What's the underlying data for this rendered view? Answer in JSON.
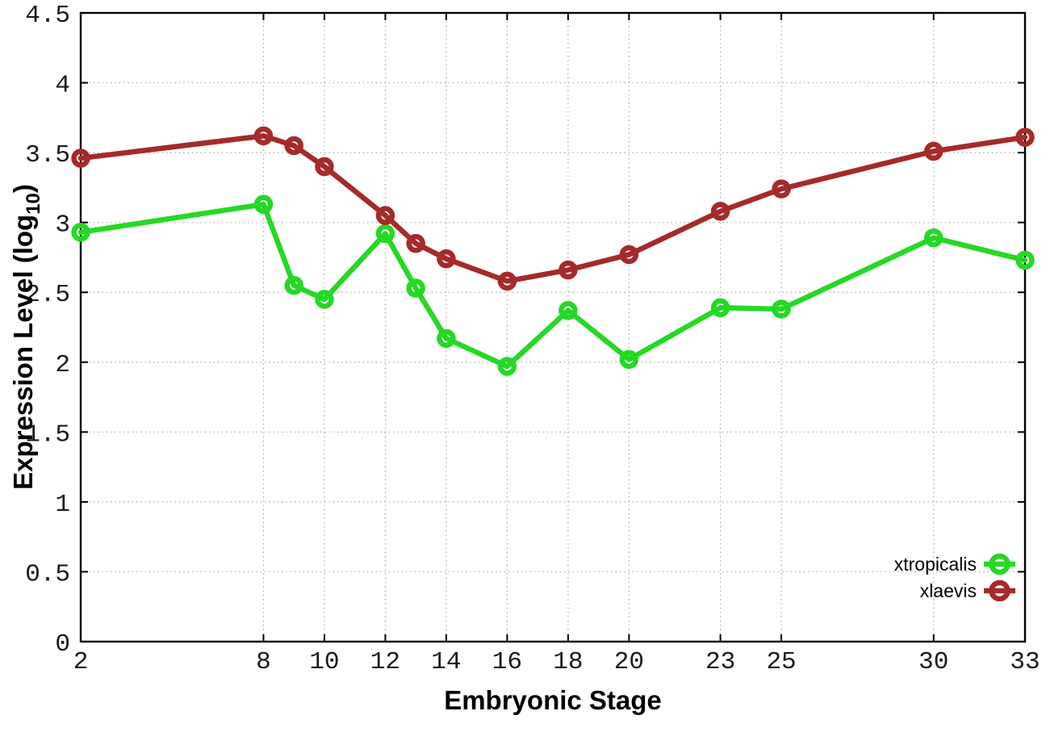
{
  "chart_data": {
    "type": "line",
    "title": "",
    "xlabel": "Embryonic Stage",
    "ylabel": {
      "text": "Expression Level (log",
      "subscript": "10",
      "suffix": ")"
    },
    "xlim": [
      2,
      33
    ],
    "ylim": [
      0,
      4.5
    ],
    "grid": true,
    "legend_position": "bottom-right",
    "xtick_values": [
      2,
      8,
      10,
      12,
      14,
      16,
      18,
      20,
      23,
      25,
      30,
      33
    ],
    "xtick_labels": [
      "2",
      "8",
      "10",
      "12",
      "14",
      "16",
      "18",
      "20",
      "23",
      "25",
      "30",
      "33"
    ],
    "ytick_values": [
      0,
      0.5,
      1,
      1.5,
      2,
      2.5,
      3,
      3.5,
      4,
      4.5
    ],
    "ytick_labels": [
      "0",
      "0.5",
      "1",
      "1.5",
      "2",
      "2.5",
      "3",
      "3.5",
      "4",
      "4.5"
    ],
    "x": [
      2,
      8,
      9,
      10,
      12,
      13,
      14,
      16,
      18,
      20,
      23,
      25,
      30,
      33
    ],
    "series": [
      {
        "name": "xtropicalis",
        "color": "#26d826",
        "marker": "open-circle",
        "values": [
          2.93,
          3.13,
          2.55,
          2.45,
          2.92,
          2.53,
          2.17,
          1.97,
          2.37,
          2.02,
          2.39,
          2.38,
          2.89,
          2.73
        ]
      },
      {
        "name": "xlaevis",
        "color": "#a52a2a",
        "marker": "open-circle",
        "values": [
          3.46,
          3.62,
          3.55,
          3.4,
          3.05,
          2.85,
          2.74,
          2.58,
          2.66,
          2.77,
          3.08,
          3.24,
          3.51,
          3.61
        ]
      }
    ],
    "colors": {
      "border": "#000000",
      "grid": "#a8a8a8",
      "background": "#ffffff"
    }
  }
}
